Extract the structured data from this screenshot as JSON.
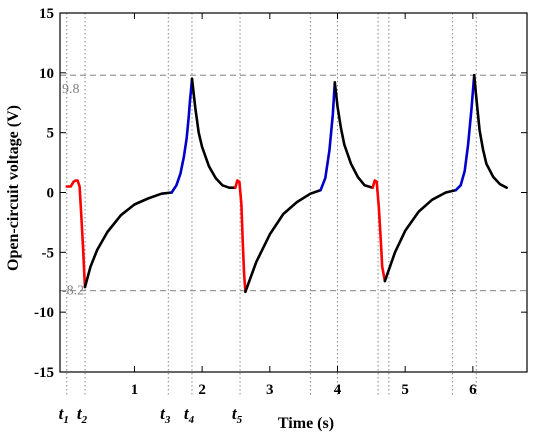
{
  "chart_data": {
    "type": "line",
    "xlabel": "Time (s)",
    "ylabel": "Open-circuit voltage (V)",
    "xlim": [
      -0.1,
      6.8
    ],
    "ylim": [
      -15,
      15
    ],
    "xticks": [
      1,
      2,
      3,
      4,
      5,
      6
    ],
    "yticks": [
      15,
      10,
      5,
      0,
      -5,
      -10,
      -15
    ],
    "grid": false,
    "reference_lines": [
      {
        "y": 9.8,
        "label": "9.8",
        "color": "#9a9a9a"
      },
      {
        "y": -8.2,
        "label": "-8.2",
        "color": "#9a9a9a"
      }
    ],
    "time_markers": [
      {
        "x": 0.0,
        "name": "t",
        "sub": "1"
      },
      {
        "x": 0.27,
        "name": "t",
        "sub": "2"
      },
      {
        "x": 1.5,
        "name": "t",
        "sub": "3"
      },
      {
        "x": 1.85,
        "name": "t",
        "sub": "4"
      },
      {
        "x": 2.56,
        "name": "t",
        "sub": "5"
      }
    ],
    "extra_dotted_x": [
      3.6,
      4.0,
      4.6,
      4.76,
      5.7,
      6.05
    ],
    "segments": [
      {
        "color": "#ff0000",
        "x": [
          0.0,
          0.03,
          0.06,
          0.1,
          0.13,
          0.16,
          0.19,
          0.21,
          0.24,
          0.26,
          0.27
        ],
        "y": [
          0.5,
          0.5,
          0.5,
          0.9,
          1.0,
          1.0,
          0.5,
          -1.5,
          -4.5,
          -7.0,
          -7.9
        ]
      },
      {
        "color": "#000000",
        "x": [
          0.27,
          0.35,
          0.45,
          0.6,
          0.8,
          1.0,
          1.2,
          1.4,
          1.55
        ],
        "y": [
          -7.9,
          -6.2,
          -4.8,
          -3.3,
          -1.9,
          -1.0,
          -0.5,
          -0.1,
          0.0
        ]
      },
      {
        "color": "#0000cc",
        "x": [
          1.55,
          1.62,
          1.68,
          1.73,
          1.77,
          1.8,
          1.82,
          1.84,
          1.85
        ],
        "y": [
          0.0,
          0.6,
          1.6,
          3.0,
          4.5,
          6.2,
          7.6,
          8.8,
          9.5
        ]
      },
      {
        "color": "#000000",
        "x": [
          1.85,
          1.9,
          1.95,
          2.0,
          2.1,
          2.2,
          2.3,
          2.4,
          2.49
        ],
        "y": [
          9.5,
          7.0,
          5.0,
          3.8,
          2.2,
          1.2,
          0.6,
          0.4,
          0.4
        ]
      },
      {
        "color": "#ff0000",
        "x": [
          2.49,
          2.52,
          2.55,
          2.58,
          2.6,
          2.62,
          2.64
        ],
        "y": [
          0.4,
          1.0,
          0.9,
          -1.0,
          -4.0,
          -6.8,
          -8.3
        ]
      },
      {
        "color": "#000000",
        "x": [
          2.64,
          2.8,
          3.0,
          3.2,
          3.4,
          3.6,
          3.75
        ],
        "y": [
          -8.3,
          -5.8,
          -3.5,
          -1.8,
          -0.8,
          -0.1,
          0.2
        ]
      },
      {
        "color": "#0000cc",
        "x": [
          3.75,
          3.82,
          3.88,
          3.93,
          3.96
        ],
        "y": [
          0.2,
          1.2,
          3.5,
          6.5,
          9.2
        ]
      },
      {
        "color": "#000000",
        "x": [
          3.96,
          4.0,
          4.05,
          4.1,
          4.2,
          4.3,
          4.4,
          4.52
        ],
        "y": [
          9.2,
          7.2,
          5.4,
          4.0,
          2.4,
          1.3,
          0.6,
          0.4
        ]
      },
      {
        "color": "#ff0000",
        "x": [
          4.52,
          4.55,
          4.58,
          4.61,
          4.64,
          4.66,
          4.7
        ],
        "y": [
          0.4,
          1.0,
          0.9,
          -1.2,
          -4.0,
          -6.2,
          -7.4
        ]
      },
      {
        "color": "#000000",
        "x": [
          4.7,
          4.85,
          5.0,
          5.2,
          5.4,
          5.6,
          5.75
        ],
        "y": [
          -7.4,
          -5.0,
          -3.2,
          -1.6,
          -0.6,
          0.0,
          0.2
        ]
      },
      {
        "color": "#0000cc",
        "x": [
          5.75,
          5.82,
          5.88,
          5.93,
          5.98,
          6.02
        ],
        "y": [
          0.2,
          0.6,
          1.8,
          4.0,
          7.0,
          9.8
        ]
      },
      {
        "color": "#000000",
        "x": [
          6.02,
          6.06,
          6.1,
          6.15,
          6.2,
          6.3,
          6.4,
          6.5
        ],
        "y": [
          9.8,
          7.4,
          5.2,
          3.6,
          2.4,
          1.3,
          0.7,
          0.4
        ]
      }
    ]
  }
}
